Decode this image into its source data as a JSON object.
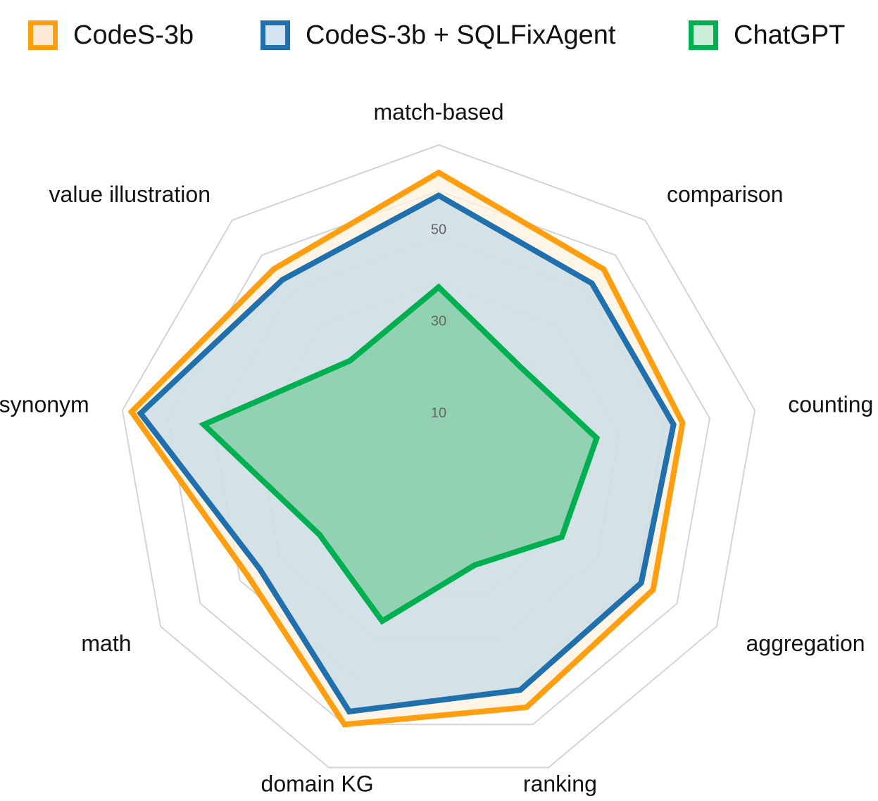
{
  "chart_data": {
    "type": "radar",
    "axes": [
      "match-based",
      "comparison",
      "counting",
      "aggregation",
      "ranking",
      "domain KG",
      "math",
      "synonym",
      "value illustration"
    ],
    "r_ticks": [
      10,
      30,
      50
    ],
    "r_range": [
      0,
      70
    ],
    "grid": true,
    "legend_position": "top",
    "series": [
      {
        "name": "CodeS-3b",
        "color": "#FF9E0F",
        "fill": "#FDF1DE",
        "values": [
          64,
          56,
          54,
          54,
          56,
          60,
          48,
          68,
          56
        ]
      },
      {
        "name": "CodeS-3b + SQLFixAgent",
        "color": "#1F70AD",
        "fill": "#C6D9E7",
        "values": [
          59,
          52,
          52,
          51,
          52,
          57,
          45,
          66,
          53
        ]
      },
      {
        "name": "ChatGPT",
        "color": "#00B050",
        "fill": "#7CCBA0",
        "values": [
          39,
          28,
          35,
          31,
          23,
          36,
          30,
          52,
          30
        ]
      }
    ]
  }
}
